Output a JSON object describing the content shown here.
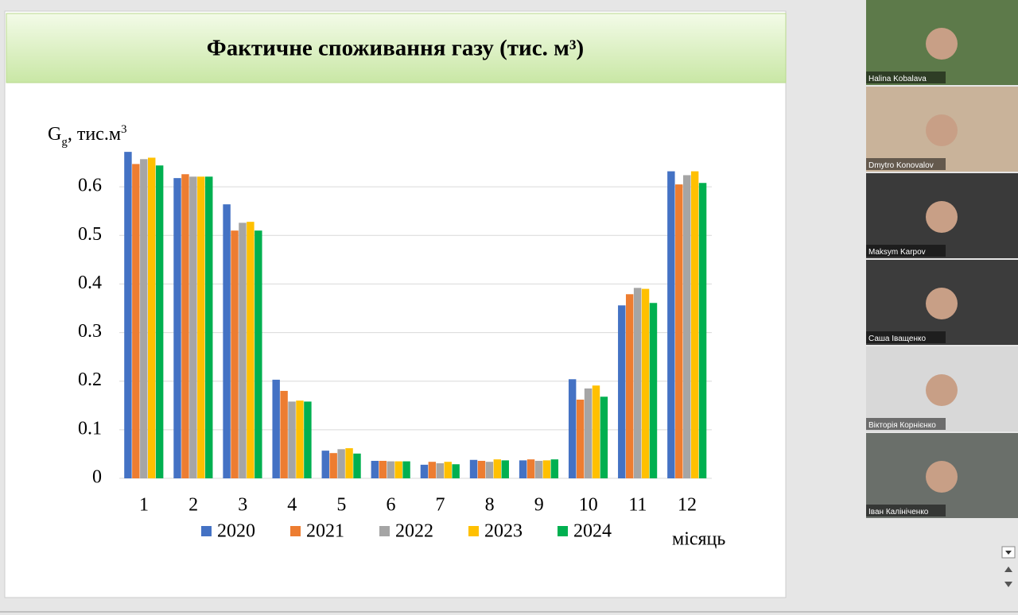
{
  "chart_data": {
    "type": "bar",
    "title": "Фактичне споживання газу (тис. м³)",
    "y_label": {
      "symbol": "G",
      "subscript": "g",
      "text": ", тис.м",
      "superscript": "3"
    },
    "x_label": "місяць",
    "categories": [
      "1",
      "2",
      "3",
      "4",
      "5",
      "6",
      "7",
      "8",
      "9",
      "10",
      "11",
      "12"
    ],
    "series": [
      {
        "name": "2020",
        "color": "#4472c4",
        "values": [
          0.672,
          0.618,
          0.564,
          0.203,
          0.057,
          0.036,
          0.028,
          0.038,
          0.037,
          0.204,
          0.356,
          0.632
        ]
      },
      {
        "name": "2021",
        "color": "#ed7d31",
        "values": [
          0.647,
          0.626,
          0.51,
          0.18,
          0.052,
          0.036,
          0.034,
          0.036,
          0.039,
          0.162,
          0.379,
          0.605
        ]
      },
      {
        "name": "2022",
        "color": "#a5a5a5",
        "values": [
          0.657,
          0.621,
          0.526,
          0.158,
          0.06,
          0.035,
          0.031,
          0.034,
          0.036,
          0.185,
          0.392,
          0.624
        ]
      },
      {
        "name": "2023",
        "color": "#ffc000",
        "values": [
          0.66,
          0.621,
          0.528,
          0.16,
          0.062,
          0.035,
          0.034,
          0.039,
          0.037,
          0.191,
          0.39,
          0.632
        ]
      },
      {
        "name": "2024",
        "color": "#00b050",
        "values": [
          0.644,
          0.621,
          0.51,
          0.158,
          0.051,
          0.035,
          0.029,
          0.037,
          0.039,
          0.168,
          0.361,
          0.608
        ]
      }
    ],
    "ylim": [
      0,
      0.7
    ],
    "yticks": [
      0,
      0.1,
      0.2,
      0.3,
      0.4,
      0.5,
      0.6
    ],
    "grid": true,
    "legend": "bottom"
  },
  "participants": [
    "Halina Kobalava",
    "Dmytro Konovalov",
    "Maksym Karpov",
    "Саша Іващенко",
    "Вікторія Корнієнко",
    "Іван Калініченко"
  ]
}
